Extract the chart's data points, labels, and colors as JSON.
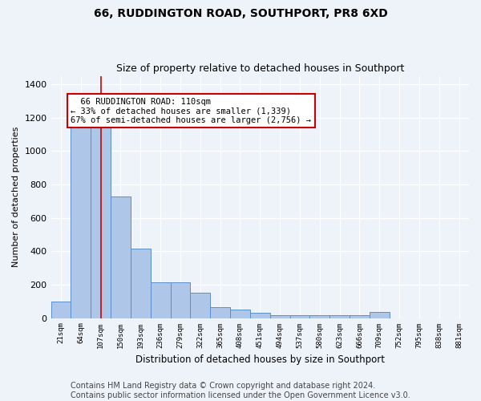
{
  "title": "66, RUDDINGTON ROAD, SOUTHPORT, PR8 6XD",
  "subtitle": "Size of property relative to detached houses in Southport",
  "xlabel": "Distribution of detached houses by size in Southport",
  "ylabel": "Number of detached properties",
  "categories": [
    "21sqm",
    "64sqm",
    "107sqm",
    "150sqm",
    "193sqm",
    "236sqm",
    "279sqm",
    "322sqm",
    "365sqm",
    "408sqm",
    "451sqm",
    "494sqm",
    "537sqm",
    "580sqm",
    "623sqm",
    "666sqm",
    "709sqm",
    "752sqm",
    "795sqm",
    "838sqm",
    "881sqm"
  ],
  "values": [
    100,
    1175,
    1175,
    730,
    415,
    215,
    215,
    150,
    65,
    50,
    30,
    15,
    15,
    15,
    15,
    15,
    35,
    0,
    0,
    0,
    0
  ],
  "bar_color": "#aec6e8",
  "bar_edge_color": "#5b8fc9",
  "highlight_index": 2,
  "highlight_line_color": "#cc0000",
  "annotation_text": "  66 RUDDINGTON ROAD: 110sqm\n← 33% of detached houses are smaller (1,339)\n67% of semi-detached houses are larger (2,756) →",
  "annotation_box_color": "#ffffff",
  "annotation_box_edge_color": "#cc0000",
  "ylim": [
    0,
    1450
  ],
  "yticks": [
    0,
    200,
    400,
    600,
    800,
    1000,
    1200,
    1400
  ],
  "footer_line1": "Contains HM Land Registry data © Crown copyright and database right 2024.",
  "footer_line2": "Contains public sector information licensed under the Open Government Licence v3.0.",
  "bg_color": "#eef2f9",
  "plot_bg_color": "#eef2f9",
  "grid_color": "#ffffff",
  "title_fontsize": 10,
  "subtitle_fontsize": 9,
  "footer_fontsize": 7
}
